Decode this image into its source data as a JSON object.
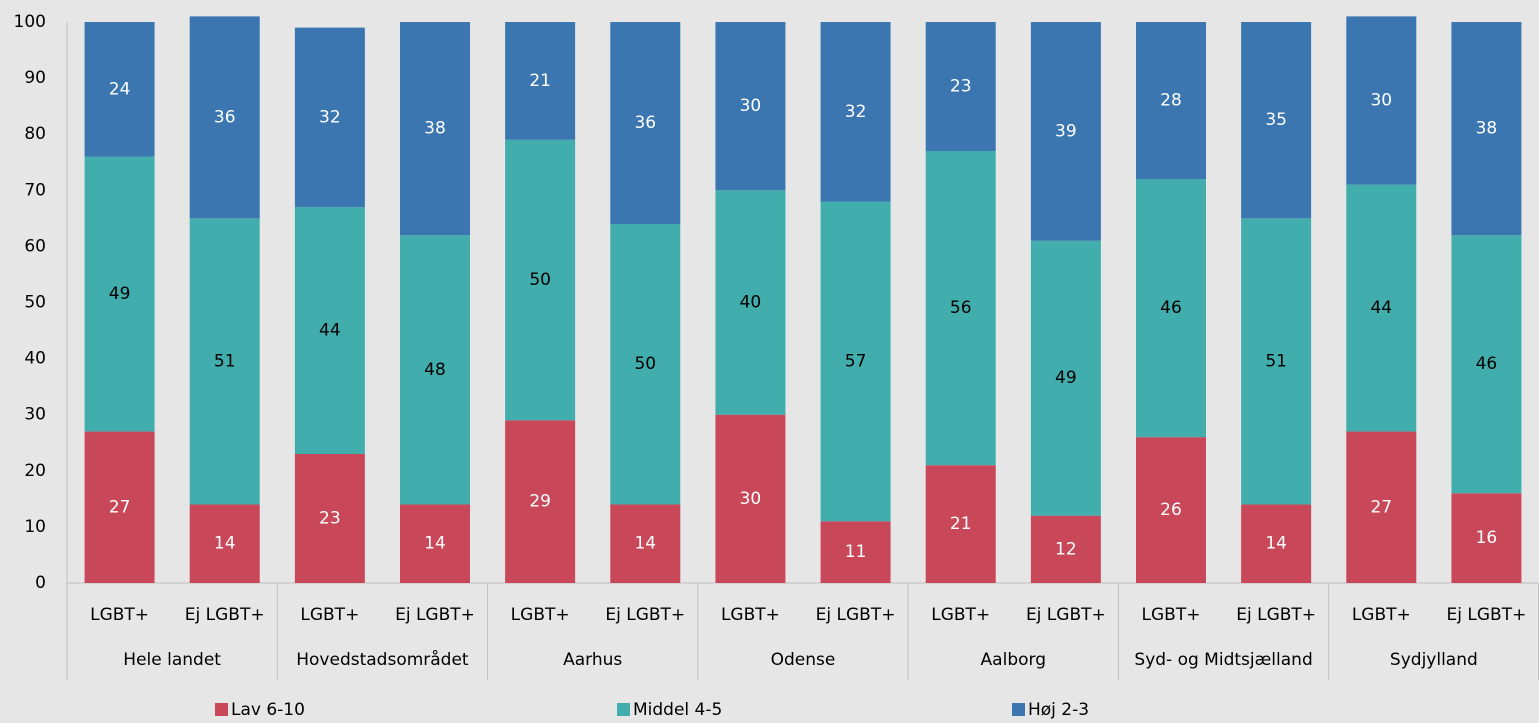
{
  "chart_data": {
    "type": "stacked_bar",
    "categories": [
      "LGBT+",
      "Ej LGBT+",
      "LGBT+",
      "Ej LGBT+",
      "LGBT+",
      "Ej LGBT+",
      "LGBT+",
      "Ej LGBT+",
      "LGBT+",
      "Ej LGBT+",
      "LGBT+",
      "Ej LGBT+",
      "LGBT+",
      "Ej LGBT+"
    ],
    "groups": [
      "Hele landet",
      "Hovedstadsområdet",
      "Aarhus",
      "Odense",
      "Aalborg",
      "Syd- og Midtsjælland",
      "Sydjylland"
    ],
    "series": [
      {
        "name": "Lav 6-10",
        "color": "#c8485a",
        "label_color": "#ffffff",
        "values": [
          27,
          14,
          23,
          14,
          29,
          14,
          30,
          11,
          21,
          12,
          26,
          14,
          27,
          16
        ]
      },
      {
        "name": "Middel 4-5",
        "color": "#41adad",
        "label_color": "#000000",
        "values": [
          49,
          51,
          44,
          48,
          50,
          50,
          40,
          57,
          56,
          49,
          46,
          51,
          44,
          46
        ]
      },
      {
        "name": "Høj 2-3",
        "color": "#3b76b0",
        "label_color": "#ffffff",
        "values": [
          24,
          36,
          32,
          38,
          21,
          36,
          30,
          32,
          23,
          39,
          28,
          35,
          30,
          38
        ]
      }
    ],
    "ylim": [
      0,
      100
    ],
    "yticks": [
      0,
      10,
      20,
      30,
      40,
      50,
      60,
      70,
      80,
      90,
      100
    ],
    "grid": false,
    "legend": "bottom"
  }
}
